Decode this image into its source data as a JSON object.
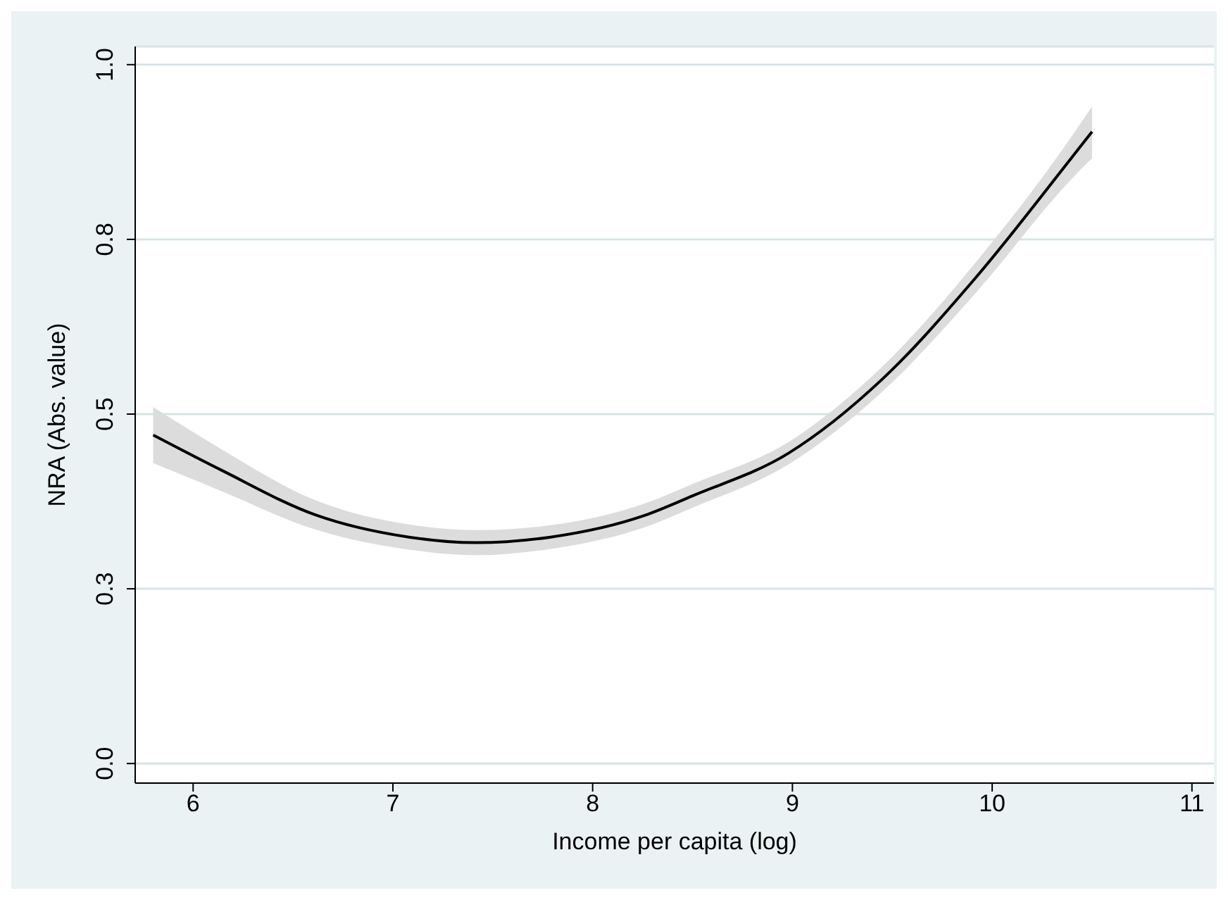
{
  "chart_data": {
    "type": "line",
    "xlabel": "Income per capita (log)",
    "ylabel": "NRA (Abs. value)",
    "x": [
      5.8,
      6.14,
      6.61,
      7.08,
      7.42,
      7.79,
      8.26,
      8.5,
      8.98,
      9.45,
      9.92,
      10.39,
      10.5
    ],
    "series": [
      {
        "color": "#000000",
        "values": [
          0.47,
          0.42,
          0.356,
          0.324,
          0.316,
          0.324,
          0.355,
          0.383,
          0.444,
          0.55,
          0.696,
          0.864,
          0.904
        ],
        "lower": [
          0.43,
          0.39,
          0.335,
          0.306,
          0.298,
          0.307,
          0.338,
          0.366,
          0.428,
          0.532,
          0.674,
          0.834,
          0.866
        ],
        "upper": [
          0.51,
          0.45,
          0.377,
          0.342,
          0.334,
          0.341,
          0.372,
          0.4,
          0.46,
          0.568,
          0.718,
          0.894,
          0.94
        ]
      }
    ],
    "xlim": [
      5.71,
      11.11
    ],
    "xticks": [
      6,
      7,
      8,
      9,
      10,
      11
    ],
    "ylim": [
      -0.028,
      1.026
    ],
    "yticks": [
      {
        "value": 0,
        "label": "0.0"
      },
      {
        "value": 0.25,
        "label": "0.3"
      },
      {
        "value": 0.5,
        "label": "0.5"
      },
      {
        "value": 0.75,
        "label": "0.8"
      },
      {
        "value": 1,
        "label": "1.0"
      }
    ],
    "grid": "y",
    "marker": "none",
    "line_style": "solid",
    "legend": false
  }
}
